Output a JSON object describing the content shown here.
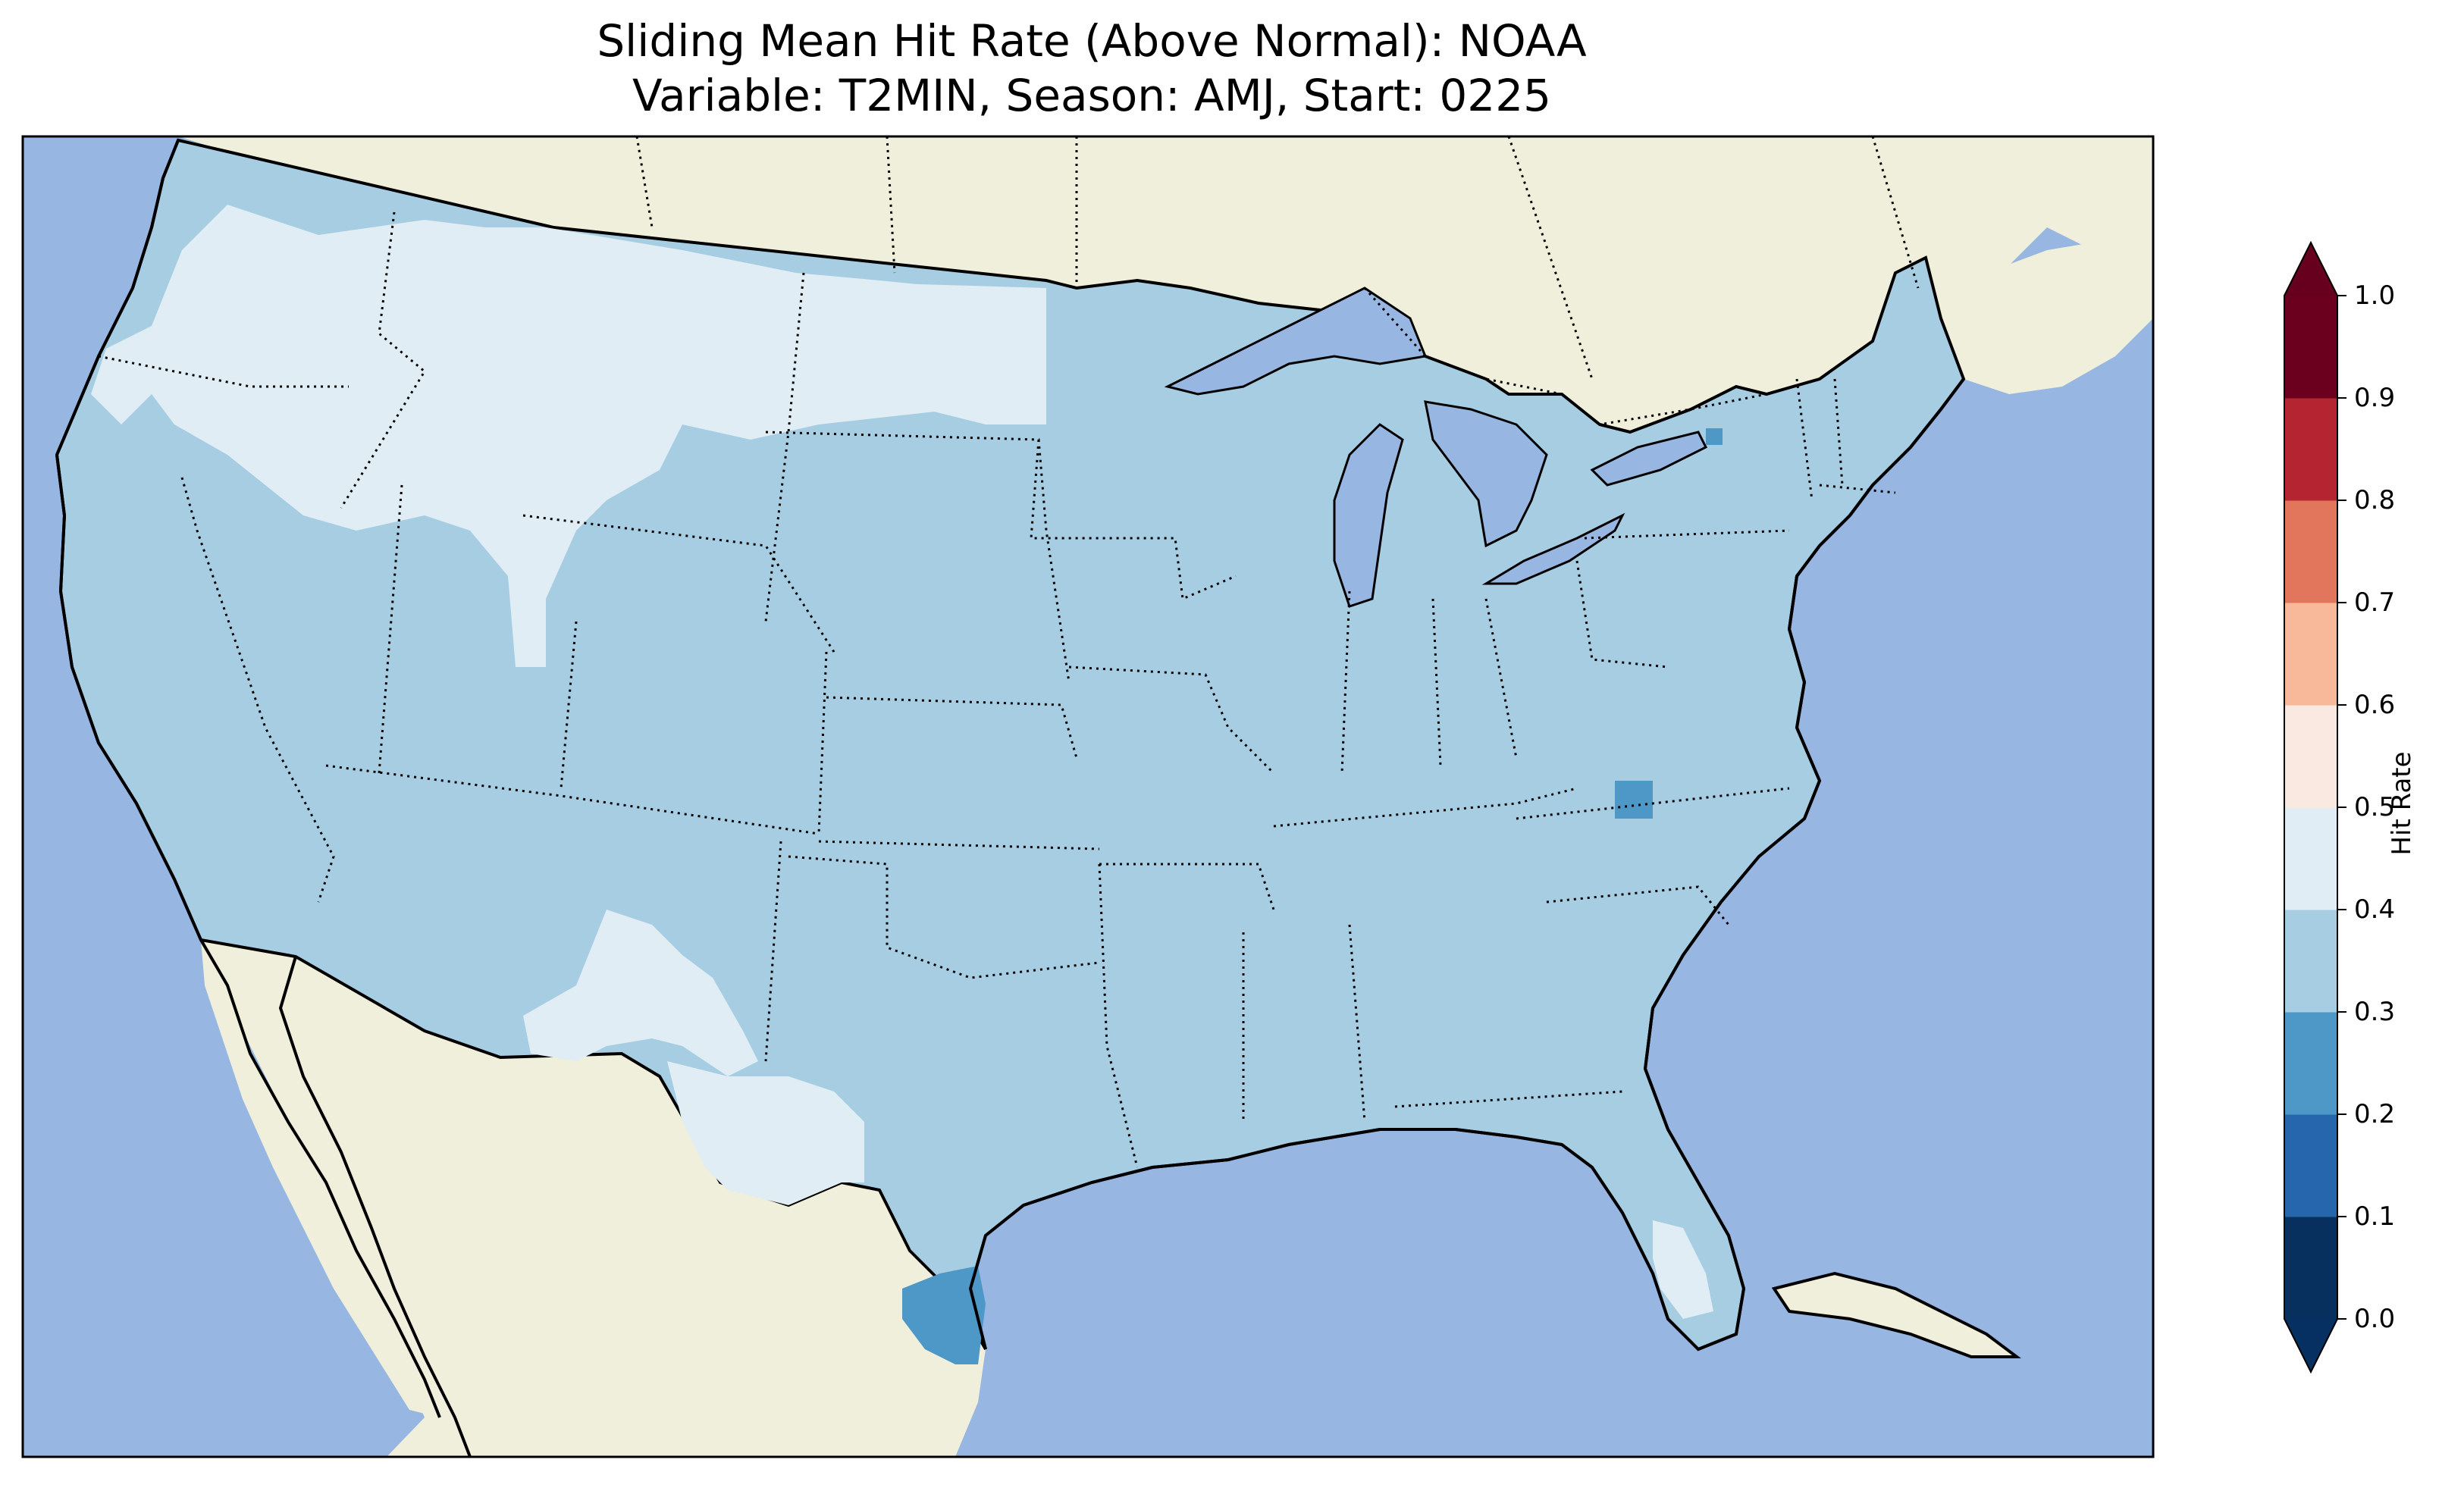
{
  "title": {
    "line1": "Sliding Mean Hit Rate (Above Normal): NOAA",
    "line2": "Variable: T2MIN, Season: AMJ, Start: 0225"
  },
  "map": {
    "ocean_color": "#97b6e1",
    "land_color": "#efefdb",
    "lake_color": "#97b6e1"
  },
  "colorbar": {
    "label": "Hit Rate",
    "ticks": [
      "0.0",
      "0.1",
      "0.2",
      "0.3",
      "0.4",
      "0.5",
      "0.6",
      "0.7",
      "0.8",
      "0.9",
      "1.0"
    ],
    "colors": [
      "#053061",
      "#2166ac",
      "#4393c3",
      "#92c5de",
      "#d1e5f0",
      "#f7f7f7",
      "#fddbc7",
      "#f4a582",
      "#d6604d",
      "#b2182b",
      "#67001f"
    ],
    "display_colors": [
      "#08305f",
      "#2566ac",
      "#4e98c7",
      "#a7cde3",
      "#e1edf4",
      "#f9e9e1",
      "#f7b99a",
      "#e1765c",
      "#b52431",
      "#6a001e"
    ],
    "under_color": "#053061",
    "over_color": "#67001f"
  },
  "field": {
    "dominant_band": "0.3-0.4",
    "dominant_color": "#a7cde3",
    "high_band": "0.4-0.5",
    "high_color": "#e1edf4",
    "low_band": "0.2-0.3",
    "low_color": "#4e98c7"
  }
}
